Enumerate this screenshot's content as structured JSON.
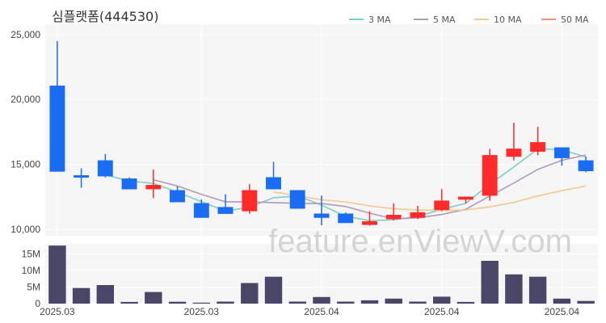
{
  "watermark": "feature.enViewV.com",
  "chart_data": {
    "type": "candlestick",
    "title": "심플랫폼(444530)",
    "legend": [
      {
        "label": "3 MA",
        "color": "#7fcdc4"
      },
      {
        "label": "5 MA",
        "color": "#b09ab8"
      },
      {
        "label": "10 MA",
        "color": "#f0c98c"
      },
      {
        "label": "50 MA",
        "color": "#f2927a"
      }
    ],
    "colors": {
      "up": "#ff2b2b",
      "down": "#1a6df2",
      "volume": "#4a4668",
      "grid": "#ffffff",
      "plot_bg": "#f5f5f5"
    },
    "price_axis": {
      "ticks": [
        10000,
        15000,
        20000,
        25000
      ],
      "tick_labels": [
        "10,000",
        "15,000",
        "20,000",
        "25,000"
      ],
      "ylim": [
        9500,
        25800
      ]
    },
    "volume_axis": {
      "ticks": [
        0,
        5000000,
        10000000,
        15000000
      ],
      "tick_labels": [
        "0",
        "5M",
        "10M",
        "15M"
      ],
      "ylim": [
        0,
        18000000
      ]
    },
    "x_labels": [
      {
        "index": 0,
        "text": "2025.03"
      },
      {
        "index": 6,
        "text": "2025.03"
      },
      {
        "index": 11,
        "text": "2025.04"
      },
      {
        "index": 16,
        "text": "2025.04"
      },
      {
        "index": 21,
        "text": "2025.04"
      }
    ],
    "candles": [
      {
        "o": 21050,
        "h": 24500,
        "l": 14450,
        "c": 14450,
        "v": 17500000
      },
      {
        "o": 14150,
        "h": 14700,
        "l": 13200,
        "c": 14000,
        "v": 4700000
      },
      {
        "o": 15300,
        "h": 15800,
        "l": 14000,
        "c": 14100,
        "v": 5600000
      },
      {
        "o": 13900,
        "h": 14000,
        "l": 13100,
        "c": 13100,
        "v": 500000
      },
      {
        "o": 13100,
        "h": 14600,
        "l": 12400,
        "c": 13400,
        "v": 3500000
      },
      {
        "o": 13000,
        "h": 13300,
        "l": 12100,
        "c": 12100,
        "v": 550000
      },
      {
        "o": 12000,
        "h": 12300,
        "l": 10900,
        "c": 10900,
        "v": 300000
      },
      {
        "o": 11700,
        "h": 12700,
        "l": 11200,
        "c": 11200,
        "v": 600000
      },
      {
        "o": 11400,
        "h": 13500,
        "l": 11200,
        "c": 13000,
        "v": 6200000
      },
      {
        "o": 14000,
        "h": 15200,
        "l": 13100,
        "c": 13100,
        "v": 8100000
      },
      {
        "o": 13000,
        "h": 13000,
        "l": 11600,
        "c": 11600,
        "v": 600000
      },
      {
        "o": 11200,
        "h": 12600,
        "l": 10300,
        "c": 10900,
        "v": 2000000
      },
      {
        "o": 11200,
        "h": 11300,
        "l": 10500,
        "c": 10500,
        "v": 600000
      },
      {
        "o": 10350,
        "h": 11400,
        "l": 10300,
        "c": 10600,
        "v": 1000000
      },
      {
        "o": 10800,
        "h": 12000,
        "l": 10700,
        "c": 11100,
        "v": 1500000
      },
      {
        "o": 10900,
        "h": 11800,
        "l": 10800,
        "c": 11300,
        "v": 600000
      },
      {
        "o": 11500,
        "h": 13100,
        "l": 11400,
        "c": 12200,
        "v": 2100000
      },
      {
        "o": 12300,
        "h": 12500,
        "l": 12000,
        "c": 12500,
        "v": 500000
      },
      {
        "o": 12600,
        "h": 16200,
        "l": 12200,
        "c": 15700,
        "v": 12900000
      },
      {
        "o": 15600,
        "h": 18200,
        "l": 15300,
        "c": 16200,
        "v": 8800000
      },
      {
        "o": 16000,
        "h": 17900,
        "l": 15700,
        "c": 16700,
        "v": 8100000
      },
      {
        "o": 16300,
        "h": 16300,
        "l": 14900,
        "c": 15500,
        "v": 1500000
      },
      {
        "o": 15300,
        "h": 15600,
        "l": 14400,
        "c": 14500,
        "v": 800000
      }
    ],
    "ma": {
      "3 MA": [
        null,
        null,
        14183,
        13733,
        13533,
        12867,
        12133,
        11400,
        11700,
        12433,
        12567,
        11867,
        11000,
        10667,
        10733,
        11000,
        11533,
        12000,
        13467,
        14800,
        16200,
        16133,
        15567
      ],
      "5 MA": [
        null,
        null,
        null,
        null,
        13820,
        13340,
        12700,
        12120,
        12120,
        12060,
        12000,
        11980,
        11760,
        11240,
        10800,
        10880,
        11140,
        11540,
        12560,
        13560,
        14620,
        15320,
        15720
      ],
      "10 MA": [
        null,
        null,
        null,
        null,
        null,
        null,
        null,
        null,
        null,
        12870,
        12585,
        12275,
        12115,
        11805,
        11575,
        11495,
        11455,
        11485,
        11725,
        12075,
        12575,
        12975,
        13335
      ],
      "50 MA": []
    }
  }
}
